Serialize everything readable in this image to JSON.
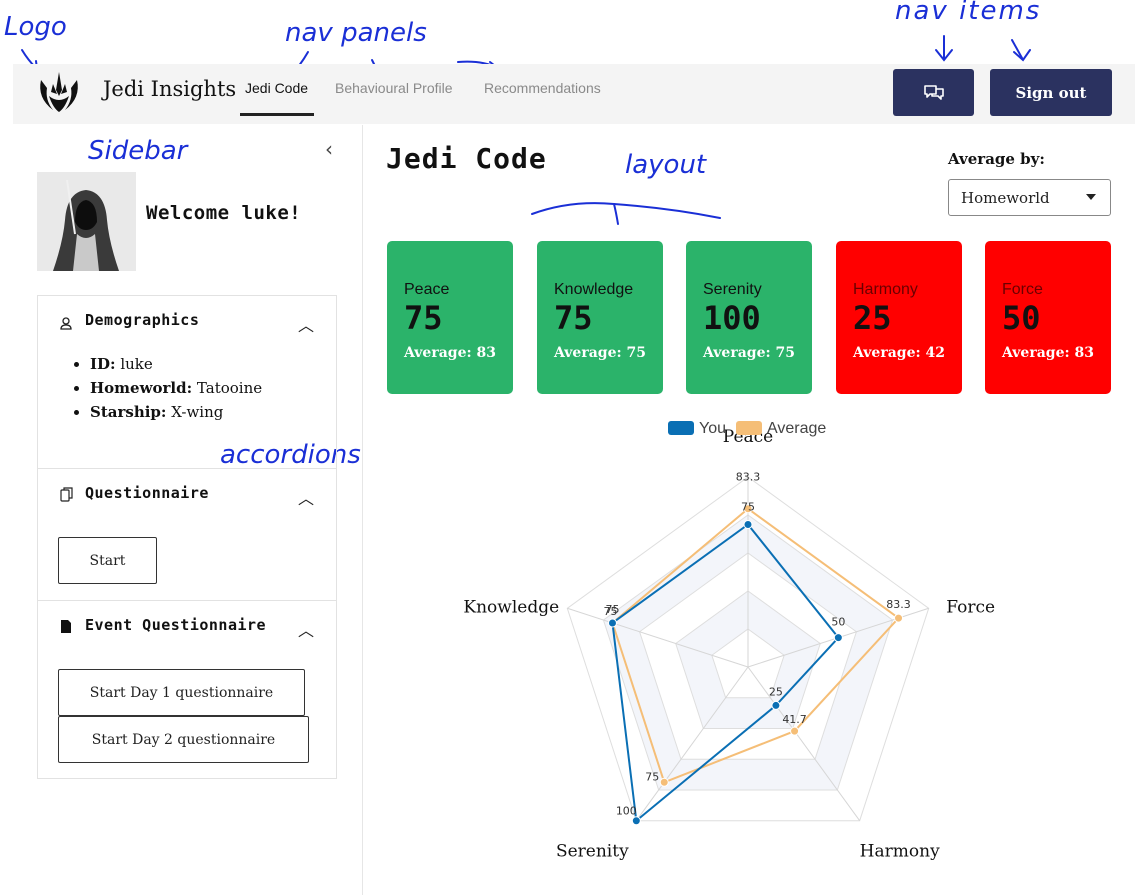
{
  "annotations": {
    "logo": "Logo",
    "nav_panels": "nav panels",
    "nav_items": "nav items",
    "sidebar": "Sidebar",
    "layout": "layout",
    "accordions": "accordions"
  },
  "header": {
    "app_title": "Jedi Insights",
    "tabs": [
      {
        "label": "Jedi Code",
        "active": true
      },
      {
        "label": "Behavioural Profile",
        "active": false
      },
      {
        "label": "Recommendations",
        "active": false
      }
    ],
    "chat_icon": "chat-bubbles-icon",
    "sign_out_label": "Sign out",
    "accent_color": "#2b3260"
  },
  "sidebar": {
    "welcome": "Welcome luke!",
    "collapse_icon": "chevron-left-icon",
    "accordions": [
      {
        "title": "Demographics",
        "icon": "user-icon",
        "items": [
          {
            "key": "ID:",
            "value": "luke"
          },
          {
            "key": "Homeworld:",
            "value": "Tatooine"
          },
          {
            "key": "Starship:",
            "value": "X-wing"
          }
        ]
      },
      {
        "title": "Questionnaire",
        "icon": "copy-icon",
        "button": "Start"
      },
      {
        "title": "Event Questionnaire",
        "icon": "file-icon",
        "buttons": [
          "Start Day 1 questionnaire",
          "Start Day 2 questionnaire"
        ]
      }
    ]
  },
  "main": {
    "title": "Jedi Code",
    "average_by_label": "Average by:",
    "average_by_value": "Homeworld",
    "cards": [
      {
        "label": "Peace",
        "value": "75",
        "average": "Average: 83",
        "status": "green"
      },
      {
        "label": "Knowledge",
        "value": "75",
        "average": "Average: 75",
        "status": "green"
      },
      {
        "label": "Serenity",
        "value": "100",
        "average": "Average: 75",
        "status": "green"
      },
      {
        "label": "Harmony",
        "value": "25",
        "average": "Average: 42",
        "status": "red"
      },
      {
        "label": "Force",
        "value": "50",
        "average": "Average: 83",
        "status": "red"
      }
    ],
    "status_colors": {
      "green": "#2bb36a",
      "red": "#ff0000"
    }
  },
  "chart_data": {
    "type": "radar",
    "categories": [
      "Peace",
      "Force",
      "Harmony",
      "Serenity",
      "Knowledge"
    ],
    "series": [
      {
        "name": "You",
        "color": "#0a6fb4",
        "values": [
          75,
          50,
          25,
          100,
          75
        ],
        "labels": [
          "75",
          "50",
          "25",
          "100",
          "75"
        ]
      },
      {
        "name": "Average",
        "color": "#f5be77",
        "values": [
          83.3,
          83.3,
          41.7,
          75,
          75
        ],
        "labels": [
          "83.3",
          "83.3",
          "41.7",
          "75",
          "75"
        ]
      }
    ],
    "rlim": [
      0,
      100
    ],
    "grid": true,
    "legend": "top"
  }
}
